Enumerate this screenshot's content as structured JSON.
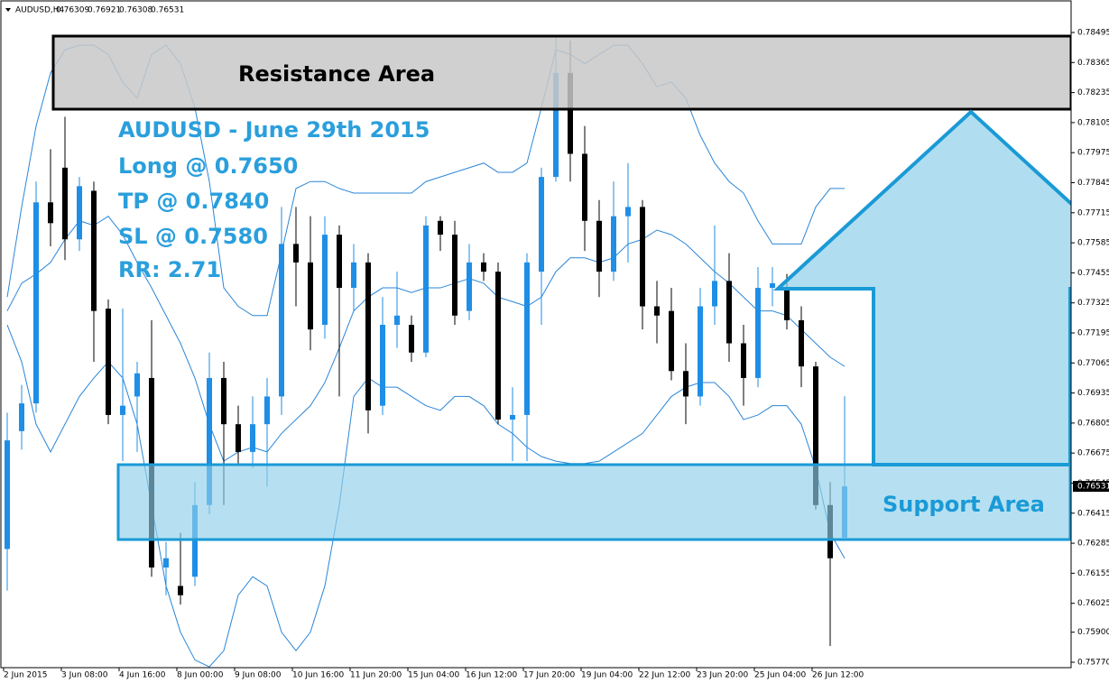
{
  "chart_data": {
    "type": "candlestick",
    "header": "AUDUSD,H4",
    "categories": [
      "2 Jun 2015",
      null,
      null,
      null,
      "3 Jun 08:00",
      null,
      null,
      null,
      "4 Jun 16:00",
      null,
      null,
      null,
      "8 Jun 00:00",
      null,
      null,
      null,
      "9 Jun 08:00",
      null,
      null,
      null,
      "10 Jun 16:00",
      null,
      null,
      null,
      "11 Jun 20:00",
      null,
      null,
      null,
      "15 Jun 04:00",
      null,
      null,
      null,
      "16 Jun 12:00",
      null,
      null,
      null,
      "17 Jun 20:00",
      null,
      null,
      null,
      "19 Jun 04:00",
      null,
      null,
      null,
      "22 Jun 12:00",
      null,
      null,
      null,
      "23 Jun 20:00",
      null,
      null,
      null,
      "25 Jun 04:00",
      null,
      null,
      null,
      "26 Jun 12:00",
      null,
      null
    ],
    "open": [
      0.7626,
      0.7677,
      0.7689,
      0.7776,
      0.7791,
      0.776,
      0.7781,
      0.773,
      0.7684,
      0.7692,
      0.77,
      0.7618,
      0.761,
      0.7614,
      0.7645,
      0.77,
      0.768,
      0.7668,
      0.768,
      0.7692,
      0.7758,
      0.775,
      0.7723,
      0.7762,
      0.7739,
      0.775,
      0.7688,
      0.7723,
      0.7723,
      0.7711,
      0.7768,
      0.7762,
      0.7729,
      0.775,
      0.7746,
      0.7682,
      0.7684,
      0.7746,
      0.7787,
      0.7832,
      0.7797,
      0.7768,
      0.7746,
      0.777,
      0.7774,
      0.7731,
      0.7729,
      0.7703,
      0.7692,
      0.7731,
      0.7742,
      0.7715,
      0.77,
      0.7739,
      0.7739,
      0.7725,
      0.7705,
      0.7645,
      0.76309
    ],
    "high": [
      0.7685,
      0.7697,
      0.7785,
      0.7799,
      0.7813,
      0.7787,
      0.7785,
      0.7734,
      0.773,
      0.7707,
      0.7725,
      0.7629,
      0.7633,
      0.7655,
      0.7711,
      0.7707,
      0.7688,
      0.7692,
      0.77,
      0.7774,
      0.7774,
      0.777,
      0.777,
      0.7766,
      0.7758,
      0.7754,
      0.7735,
      0.7746,
      0.7727,
      0.777,
      0.777,
      0.7768,
      0.7758,
      0.7754,
      0.775,
      0.7696,
      0.7754,
      0.7791,
      0.7848,
      0.7846,
      0.7809,
      0.7777,
      0.7785,
      0.7793,
      0.7777,
      0.7742,
      0.7739,
      0.7715,
      0.7739,
      0.7766,
      0.7754,
      0.7723,
      0.7748,
      0.7748,
      0.7745,
      0.7731,
      0.7707,
      0.7655,
      0.76921
    ],
    "low": [
      0.7608,
      0.7669,
      0.7685,
      0.7757,
      0.7751,
      0.7755,
      0.7707,
      0.768,
      0.7664,
      0.7668,
      0.7614,
      0.7606,
      0.7602,
      0.761,
      0.7641,
      0.7645,
      0.7662,
      0.7661,
      0.7653,
      0.7684,
      0.7731,
      0.7712,
      0.7717,
      0.7692,
      0.7729,
      0.7676,
      0.7684,
      0.7713,
      0.7707,
      0.7709,
      0.7755,
      0.7723,
      0.7725,
      0.7742,
      0.768,
      0.7664,
      0.7664,
      0.7723,
      0.7785,
      0.7785,
      0.7755,
      0.7735,
      0.7742,
      0.775,
      0.7721,
      0.7715,
      0.7699,
      0.768,
      0.7688,
      0.7723,
      0.7707,
      0.7688,
      0.7696,
      0.7731,
      0.7721,
      0.7696,
      0.7643,
      0.7584,
      0.76308
    ],
    "close": [
      0.7673,
      0.7689,
      0.7776,
      0.7767,
      0.776,
      0.7783,
      0.7729,
      0.7684,
      0.7688,
      0.7702,
      0.7618,
      0.7622,
      0.7606,
      0.7645,
      0.77,
      0.768,
      0.7668,
      0.768,
      0.7692,
      0.7758,
      0.775,
      0.7721,
      0.7762,
      0.7739,
      0.775,
      0.7686,
      0.7723,
      0.7727,
      0.7711,
      0.7766,
      0.7762,
      0.7727,
      0.775,
      0.7746,
      0.7682,
      0.7684,
      0.775,
      0.7787,
      0.7832,
      0.7797,
      0.7768,
      0.7746,
      0.777,
      0.7774,
      0.7731,
      0.7727,
      0.7703,
      0.7692,
      0.7731,
      0.7742,
      0.7715,
      0.77,
      0.7739,
      0.7741,
      0.7725,
      0.7705,
      0.7645,
      0.7622,
      0.76531
    ],
    "up_color": "#1e8ee6",
    "down_color": "#000000",
    "lines": [
      {
        "color": "#2b86d8",
        "values": [
          0.7735,
          0.7774,
          0.7809,
          0.7832,
          0.7842,
          0.7844,
          0.7844,
          0.784,
          0.7828,
          0.7821,
          0.784,
          0.7844,
          0.7836,
          0.7817,
          0.7785,
          0.7739,
          0.7731,
          0.7727,
          0.7727,
          0.7754,
          0.7782,
          0.7785,
          0.7785,
          0.7782,
          0.778,
          0.778,
          0.778,
          0.778,
          0.778,
          0.7785,
          0.7787,
          0.7789,
          0.7791,
          0.7793,
          0.7789,
          0.7789,
          0.7793,
          0.7817,
          0.7842,
          0.784,
          0.7836,
          0.784,
          0.7844,
          0.7844,
          0.7836,
          0.7826,
          0.7828,
          0.7821,
          0.7805,
          0.7793,
          0.7785,
          0.778,
          0.7768,
          0.7758,
          0.7758,
          0.7758,
          0.7774,
          0.7782,
          0.7782
        ]
      },
      {
        "color": "#2b86d8",
        "values": [
          0.7729,
          0.7741,
          0.7745,
          0.775,
          0.776,
          0.7768,
          0.7766,
          0.777,
          0.7762,
          0.775,
          0.7739,
          0.7727,
          0.7715,
          0.77,
          0.768,
          0.7664,
          0.7668,
          0.767,
          0.7668,
          0.7676,
          0.7682,
          0.7688,
          0.7698,
          0.7713,
          0.7729,
          0.7735,
          0.7739,
          0.7739,
          0.7737,
          0.7739,
          0.7739,
          0.7741,
          0.7743,
          0.7741,
          0.7735,
          0.7733,
          0.7731,
          0.7735,
          0.7746,
          0.7752,
          0.7752,
          0.775,
          0.7752,
          0.7758,
          0.776,
          0.7764,
          0.7762,
          0.7758,
          0.7752,
          0.7746,
          0.7741,
          0.7735,
          0.7729,
          0.7729,
          0.7727,
          0.7721,
          0.7715,
          0.7709,
          0.7705
        ]
      },
      {
        "color": "#2b86d8",
        "values": [
          0.7723,
          0.7707,
          0.768,
          0.7668,
          0.768,
          0.7692,
          0.77,
          0.7707,
          0.77,
          0.768,
          0.7645,
          0.761,
          0.759,
          0.7578,
          0.7575,
          0.7582,
          0.7606,
          0.7614,
          0.761,
          0.759,
          0.7582,
          0.759,
          0.761,
          0.7645,
          0.7692,
          0.77,
          0.7696,
          0.7696,
          0.7692,
          0.7688,
          0.7686,
          0.7692,
          0.7692,
          0.7688,
          0.768,
          0.7676,
          0.767,
          0.7666,
          0.7664,
          0.7663,
          0.7663,
          0.7664,
          0.7668,
          0.7672,
          0.7676,
          0.7684,
          0.7692,
          0.7696,
          0.7698,
          0.7698,
          0.7692,
          0.7682,
          0.7684,
          0.7688,
          0.7688,
          0.768,
          0.7661,
          0.7633,
          0.7622
        ]
      }
    ],
    "ylim": [
      0.757465,
      0.7862
    ],
    "yticks": [
      0.78495,
      0.78365,
      0.78235,
      0.78105,
      0.77975,
      0.77845,
      0.77715,
      0.77585,
      0.77455,
      0.77325,
      0.77195,
      0.77065,
      0.76935,
      0.76805,
      0.76675,
      0.76545,
      0.76415,
      0.76285,
      0.76155,
      0.76025,
      {
        "value": 0.759,
        "label": "0.75900"
      },
      {
        "value": 0.7577,
        "label": "0.75770"
      }
    ],
    "annotations": {
      "resistance": "Resistance Area",
      "support": "Support Area",
      "info": [
        "AUDUSD - June 29th 2015",
        "Long @ 0.7650",
        "TP @ 0.7840",
        "SL @ 0.7580",
        "RR: 2.71"
      ]
    }
  }
}
